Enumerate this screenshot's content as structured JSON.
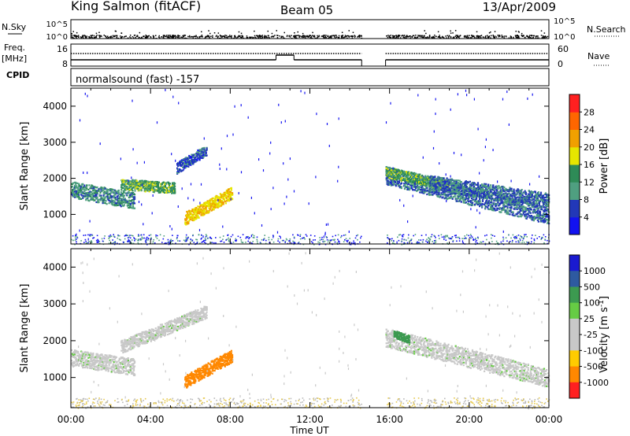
{
  "header": {
    "station": "King Salmon (fitACF)",
    "beam": "Beam 05",
    "date": "13/Apr/2009"
  },
  "top_panels": {
    "nsky_label": "N.Sky",
    "nsky_ticks": [
      "10^5",
      "10^0"
    ],
    "nsearch_label": "N.Search",
    "nsearch_ticks": [
      "10^5",
      "10^0"
    ],
    "freq_label": "Freq.",
    "freq_unit": "[MHz]",
    "freq_ticks": [
      "16",
      "8"
    ],
    "nave_label": "Nave",
    "nave_ticks": [
      "60",
      "0"
    ],
    "cpid_label": "CPID",
    "cpid_text": "normalsound (fast) -157"
  },
  "chart_data": [
    {
      "type": "heatmap",
      "title": "",
      "xlabel": "",
      "ylabel": "Slant Range [km]",
      "x_range_hours": [
        0,
        24
      ],
      "x_ticks": [
        "00:00",
        "04:00",
        "08:00",
        "12:00",
        "16:00",
        "20:00",
        "00:00"
      ],
      "y_range_km": [
        180,
        4500
      ],
      "y_ticks": [
        1000,
        2000,
        3000,
        4000
      ],
      "data_gap_hours": [
        14.6,
        15.8
      ],
      "colorbar": {
        "label": "Power [dB]",
        "tick_labels": [
          "4",
          "8",
          "12",
          "16",
          "20",
          "24",
          "28"
        ],
        "colors": [
          "#1212f0",
          "#2238b8",
          "#4f9f80",
          "#2e8b57",
          "#e6e600",
          "#f0a000",
          "#ff6600",
          "#ff2020"
        ]
      },
      "echo_regions": [
        {
          "t_start": 0.0,
          "t_end": 3.2,
          "range_start": 1700,
          "range_end": 1400,
          "thickness": 450,
          "power_db": 10
        },
        {
          "t_start": 2.5,
          "t_end": 5.2,
          "range_start": 1850,
          "range_end": 1750,
          "thickness": 300,
          "power_db": 14
        },
        {
          "t_start": 5.3,
          "t_end": 6.8,
          "range_start": 2300,
          "range_end": 2800,
          "thickness": 300,
          "power_db": 6
        },
        {
          "t_start": 5.7,
          "t_end": 8.1,
          "range_start": 900,
          "range_end": 1600,
          "thickness": 350,
          "power_db": 20
        },
        {
          "t_start": 15.8,
          "t_end": 24.0,
          "range_start": 2100,
          "range_end": 1000,
          "thickness": 500,
          "power_db": 8
        },
        {
          "t_start": 15.8,
          "t_end": 19.0,
          "range_start": 2200,
          "range_end": 1800,
          "thickness": 300,
          "power_db": 14
        },
        {
          "t_start": 18.0,
          "t_end": 24.0,
          "range_start": 1900,
          "range_end": 1400,
          "thickness": 400,
          "power_db": 8
        }
      ]
    },
    {
      "type": "heatmap",
      "title": "",
      "xlabel": "Time UT",
      "ylabel": "Slant Range [km]",
      "x_range_hours": [
        0,
        24
      ],
      "x_ticks": [
        "00:00",
        "04:00",
        "08:00",
        "12:00",
        "16:00",
        "20:00",
        "00:00"
      ],
      "y_range_km": [
        180,
        4500
      ],
      "y_ticks": [
        1000,
        2000,
        3000,
        4000
      ],
      "data_gap_hours": [
        14.6,
        15.8
      ],
      "colorbar": {
        "label": "Velocity [m s^-1]",
        "tick_labels": [
          "1000",
          "500",
          "100",
          "25",
          "-25",
          "-100",
          "-500",
          "-1000"
        ],
        "colors": [
          "#1a1ad0",
          "#2e5aa0",
          "#3c9a50",
          "#66cc44",
          "#c8c8c8",
          "#c8c8c8",
          "#ffcc00",
          "#ff8800",
          "#ff2020"
        ]
      },
      "echo_regions": [
        {
          "t_start": 0.0,
          "t_end": 3.2,
          "range_start": 1550,
          "range_end": 1300,
          "thickness": 450,
          "velocity": 0
        },
        {
          "t_start": 2.5,
          "t_end": 6.8,
          "range_start": 1850,
          "range_end": 2800,
          "thickness": 350,
          "velocity": 0
        },
        {
          "t_start": 5.7,
          "t_end": 8.1,
          "range_start": 900,
          "range_end": 1600,
          "thickness": 350,
          "velocity": -300
        },
        {
          "t_start": 15.8,
          "t_end": 24.0,
          "range_start": 2100,
          "range_end": 1000,
          "thickness": 500,
          "velocity": 0
        },
        {
          "t_start": 16.2,
          "t_end": 17.0,
          "range_start": 2200,
          "range_end": 2050,
          "thickness": 200,
          "velocity": 150
        }
      ]
    }
  ]
}
